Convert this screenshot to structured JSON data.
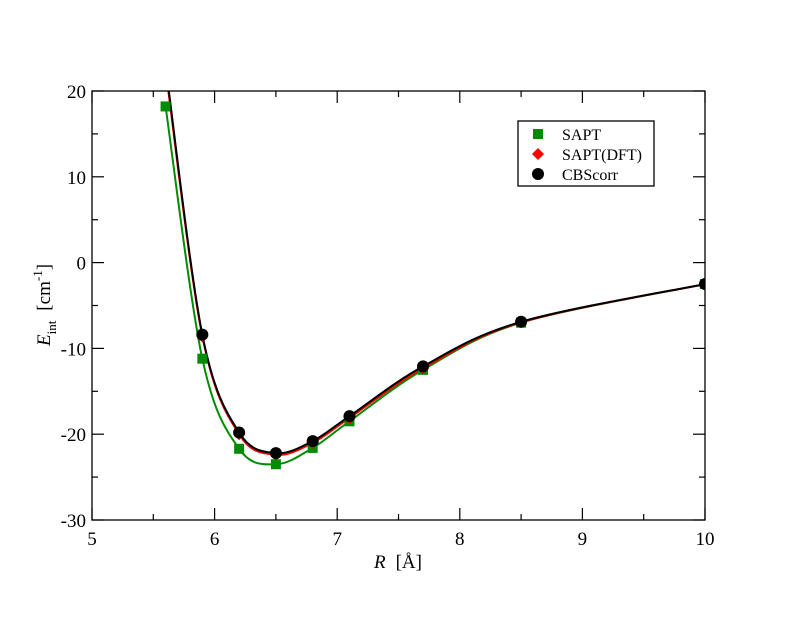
{
  "chart_data": {
    "type": "line",
    "title": "",
    "xlabel": "R",
    "xlabel_unit": "[Å]",
    "ylabel": "E",
    "ylabel_sub": "int",
    "ylabel_unit": "[cm",
    "ylabel_unit_sup": "-1",
    "ylabel_unit_close": "]",
    "xlim": [
      5,
      10
    ],
    "ylim": [
      -30,
      20
    ],
    "xticks": [
      5,
      6,
      7,
      8,
      9,
      10
    ],
    "yticks": [
      -30,
      -20,
      -10,
      0,
      10,
      20
    ],
    "xtick_labels": [
      "5",
      "6",
      "7",
      "8",
      "9",
      "10"
    ],
    "ytick_labels": [
      "-30",
      "-20",
      "-10",
      "0",
      "10",
      "20"
    ],
    "grid": false,
    "legend_position": "top-right",
    "series": [
      {
        "name": "SAPT",
        "color": "#008c00",
        "marker": "square",
        "x": [
          5.6,
          5.9,
          6.2,
          6.5,
          6.8,
          7.1,
          7.7,
          8.5,
          10
        ],
        "y": [
          18.2,
          -11.2,
          -21.7,
          -23.5,
          -21.6,
          -18.5,
          -12.5,
          -7.0,
          -2.5
        ]
      },
      {
        "name": "SAPT(DFT)",
        "color": "#ff0000",
        "marker": "diamond",
        "x": [
          5.6,
          5.9,
          6.2,
          6.5,
          6.8,
          7.1,
          7.7,
          8.5,
          10
        ],
        "y": [
          22.5,
          -8.6,
          -20.0,
          -22.4,
          -21.0,
          -18.1,
          -12.3,
          -6.95,
          -2.5
        ]
      },
      {
        "name": "CBScorr",
        "color": "#000000",
        "marker": "circle",
        "x": [
          5.6,
          5.9,
          6.2,
          6.5,
          6.8,
          7.1,
          7.7,
          8.5,
          10
        ],
        "y": [
          23.0,
          -8.4,
          -19.8,
          -22.2,
          -20.8,
          -17.9,
          -12.1,
          -6.9,
          -2.5
        ]
      }
    ]
  }
}
